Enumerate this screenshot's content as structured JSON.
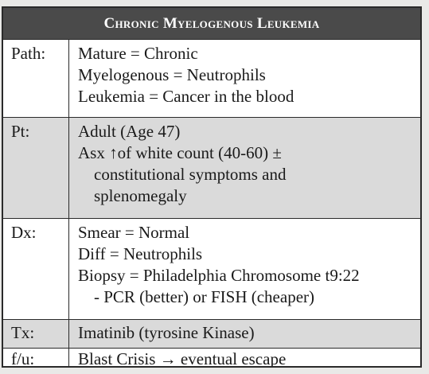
{
  "title": "Chronic Myelogenous Leukemia",
  "rows": [
    {
      "label": "Path:",
      "lines": [
        "Mature = Chronic",
        "Myelogenous = Neutrophils",
        "Leukemia = Cancer in the blood"
      ]
    },
    {
      "label": "Pt:",
      "lines": [
        "Adult (Age 47)",
        "Asx ↑of white count (40-60) ±",
        "constitutional symptoms and",
        "splenomegaly"
      ]
    },
    {
      "label": "Dx:",
      "lines": [
        "Smear = Normal",
        "Diff = Neutrophils",
        "Biopsy = Philadelphia Chromosome t9:22",
        "- PCR (better) or FISH (cheaper)"
      ]
    },
    {
      "label": "Tx:",
      "lines": [
        "Imatinib (tyrosine Kinase)"
      ]
    },
    {
      "label": "f/u:",
      "lines": [
        "Blast Crisis → eventual escape"
      ]
    }
  ]
}
